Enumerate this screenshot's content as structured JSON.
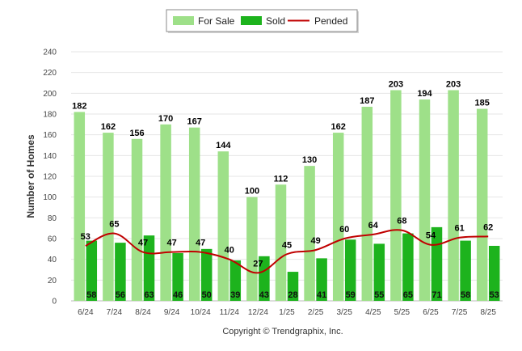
{
  "chart_data": {
    "type": "bar",
    "title": "",
    "xlabel": "",
    "ylabel": "Number of Homes",
    "ylim": [
      0,
      240
    ],
    "yticks": [
      0,
      20,
      40,
      60,
      80,
      100,
      120,
      140,
      160,
      180,
      200,
      220,
      240
    ],
    "grid": true,
    "legend_position": "top-center",
    "categories": [
      "6/24",
      "7/24",
      "8/24",
      "9/24",
      "10/24",
      "11/24",
      "12/24",
      "1/25",
      "2/25",
      "3/25",
      "4/25",
      "5/25",
      "6/25",
      "7/25",
      "8/25"
    ],
    "series": [
      {
        "name": "For Sale",
        "type": "bar",
        "color": "#9ee089",
        "values": [
          182,
          162,
          156,
          170,
          167,
          144,
          100,
          112,
          130,
          162,
          187,
          203,
          194,
          203,
          185
        ]
      },
      {
        "name": "Sold",
        "type": "bar",
        "color": "#1db31d",
        "values": [
          58,
          56,
          63,
          46,
          50,
          39,
          43,
          28,
          41,
          59,
          55,
          65,
          71,
          58,
          53
        ]
      },
      {
        "name": "Pended",
        "type": "line",
        "color": "#c00000",
        "values": [
          53,
          65,
          47,
          47,
          47,
          40,
          27,
          45,
          49,
          60,
          64,
          68,
          54,
          61,
          62
        ]
      }
    ]
  },
  "footer": {
    "credit": "Copyright © Trendgraphix, Inc."
  }
}
